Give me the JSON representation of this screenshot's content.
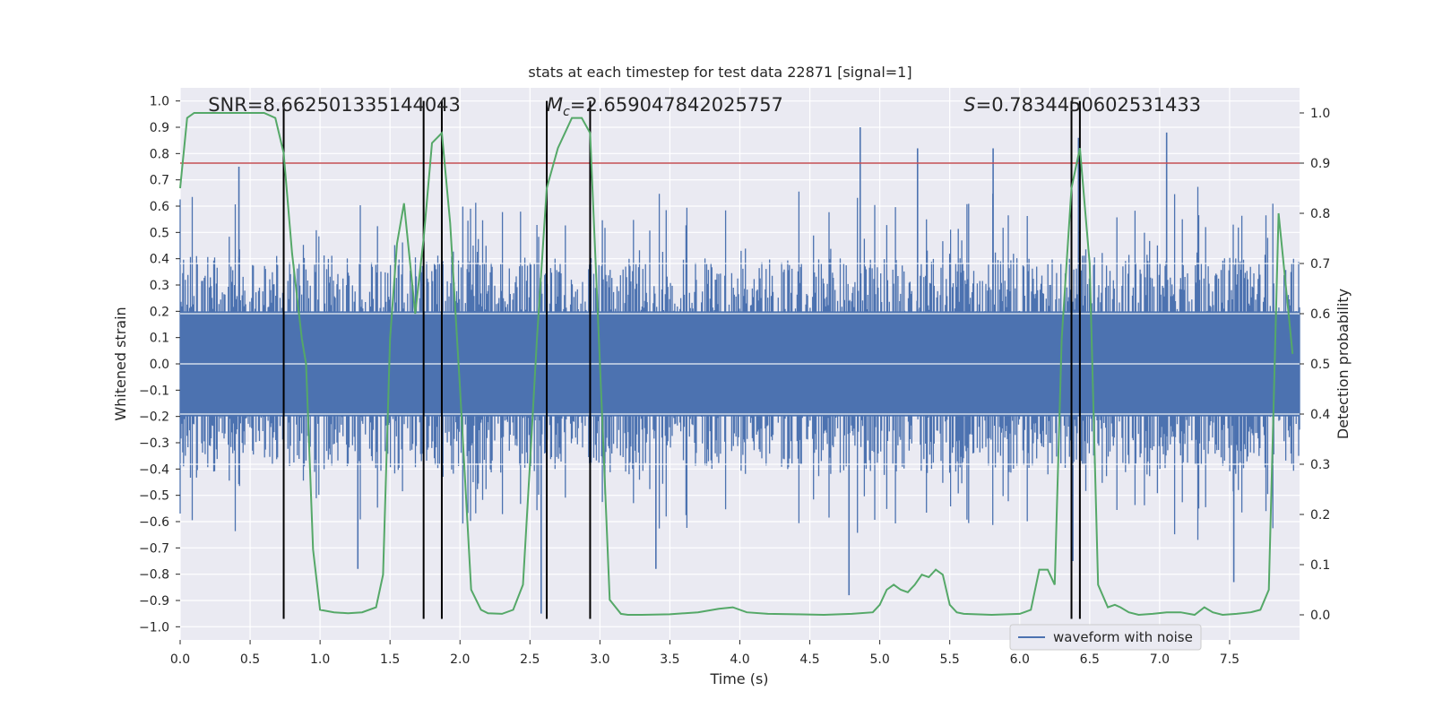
{
  "chart_data": {
    "type": "line",
    "title": "stats at each timestep for test data 22871 [signal=1]",
    "xlabel": "Time (s)",
    "ylabel": "Whitened strain",
    "y2label": "Detection probability",
    "xlim": [
      0.0,
      8.0
    ],
    "ylim": [
      -1.05,
      1.05
    ],
    "y2lim": [
      -0.05,
      1.05
    ],
    "xticks": [
      0.0,
      0.5,
      1.0,
      1.5,
      2.0,
      2.5,
      3.0,
      3.5,
      4.0,
      4.5,
      5.0,
      5.5,
      6.0,
      6.5,
      7.0,
      7.5
    ],
    "xtick_labels": [
      "0.0",
      "0.5",
      "1.0",
      "1.5",
      "2.0",
      "2.5",
      "3.0",
      "3.5",
      "4.0",
      "4.5",
      "5.0",
      "5.5",
      "6.0",
      "6.5",
      "7.0",
      "7.5"
    ],
    "yticks": [
      1.0,
      0.9,
      0.8,
      0.7,
      0.6,
      0.5,
      0.4,
      0.3,
      0.2,
      0.1,
      0.0,
      -0.1,
      -0.2,
      -0.3,
      -0.4,
      -0.5,
      -0.6,
      -0.7,
      -0.8,
      -0.9,
      -1.0
    ],
    "ytick_labels": [
      "1.0",
      "0.9",
      "0.8",
      "0.7",
      "0.6",
      "0.5",
      "0.4",
      "0.3",
      "0.2",
      "0.1",
      "0.0",
      "−0.1",
      "−0.2",
      "−0.3",
      "−0.4",
      "−0.5",
      "−0.6",
      "−0.7",
      "−0.8",
      "−0.9",
      "−1.0"
    ],
    "y2ticks": [
      1.0,
      0.9,
      0.8,
      0.7,
      0.6,
      0.5,
      0.4,
      0.3,
      0.2,
      0.1,
      0.0
    ],
    "y2tick_labels": [
      "1.0",
      "0.9",
      "0.8",
      "0.7",
      "0.6",
      "0.5",
      "0.4",
      "0.3",
      "0.2",
      "0.1",
      "0.0"
    ],
    "grid": true,
    "legend_position": "bottom-right",
    "annotations": [
      {
        "prefix": "SNR",
        "suffix": "=8.662501335144043"
      },
      {
        "prefix": "M",
        "subscript": "c",
        "suffix": "=2.659047842025757"
      },
      {
        "prefix": "S",
        "suffix": "=0.7834450602531433"
      }
    ],
    "threshold": {
      "value": 0.9,
      "axis": "y2",
      "color": "#c44e52"
    },
    "vlines": [
      0.74,
      1.74,
      1.87,
      2.62,
      2.93,
      6.37,
      6.43
    ],
    "series": [
      {
        "name": "waveform with noise",
        "axis": "y",
        "color": "#4c72b0",
        "kind": "noise",
        "typical_abs_max": 0.4,
        "spikes": [
          {
            "x": 4.86,
            "y": 0.9
          },
          {
            "x": 5.27,
            "y": 0.82
          },
          {
            "x": 5.81,
            "y": 0.82
          },
          {
            "x": 6.42,
            "y": 0.86
          },
          {
            "x": 7.05,
            "y": 0.88
          },
          {
            "x": 4.78,
            "y": -0.88
          },
          {
            "x": 2.58,
            "y": -0.95
          },
          {
            "x": 1.27,
            "y": -0.78
          },
          {
            "x": 7.53,
            "y": -0.83
          },
          {
            "x": 6.38,
            "y": -0.75
          },
          {
            "x": 3.4,
            "y": -0.78
          },
          {
            "x": 0.42,
            "y": 0.75
          }
        ]
      },
      {
        "axis": "y2",
        "color": "#55a868",
        "x": [
          0.0,
          0.05,
          0.1,
          0.2,
          0.3,
          0.4,
          0.5,
          0.6,
          0.68,
          0.74,
          0.8,
          0.87,
          0.9,
          0.95,
          1.0,
          1.1,
          1.2,
          1.3,
          1.4,
          1.45,
          1.5,
          1.55,
          1.6,
          1.68,
          1.74,
          1.8,
          1.87,
          1.93,
          2.0,
          2.08,
          2.15,
          2.2,
          2.3,
          2.38,
          2.45,
          2.5,
          2.55,
          2.62,
          2.7,
          2.75,
          2.8,
          2.87,
          2.93,
          3.0,
          3.07,
          3.15,
          3.2,
          3.3,
          3.5,
          3.7,
          3.85,
          3.95,
          4.05,
          4.2,
          4.4,
          4.6,
          4.8,
          4.95,
          5.0,
          5.05,
          5.1,
          5.15,
          5.2,
          5.25,
          5.3,
          5.35,
          5.4,
          5.45,
          5.5,
          5.55,
          5.6,
          5.8,
          6.0,
          6.08,
          6.14,
          6.2,
          6.25,
          6.3,
          6.37,
          6.43,
          6.5,
          6.56,
          6.63,
          6.68,
          6.72,
          6.78,
          6.85,
          6.95,
          7.05,
          7.15,
          7.25,
          7.32,
          7.38,
          7.45,
          7.55,
          7.65,
          7.72,
          7.78,
          7.85,
          7.95
        ],
        "y": [
          0.85,
          0.99,
          1.0,
          1.0,
          1.0,
          1.0,
          1.0,
          1.0,
          0.99,
          0.92,
          0.72,
          0.55,
          0.5,
          0.13,
          0.01,
          0.005,
          0.003,
          0.005,
          0.015,
          0.08,
          0.55,
          0.74,
          0.82,
          0.6,
          0.75,
          0.94,
          0.96,
          0.78,
          0.45,
          0.05,
          0.01,
          0.003,
          0.002,
          0.01,
          0.06,
          0.3,
          0.55,
          0.85,
          0.93,
          0.96,
          0.99,
          0.99,
          0.96,
          0.5,
          0.03,
          0.002,
          0.0,
          0.0,
          0.001,
          0.005,
          0.012,
          0.015,
          0.005,
          0.002,
          0.001,
          0.0,
          0.002,
          0.005,
          0.02,
          0.05,
          0.06,
          0.05,
          0.045,
          0.06,
          0.08,
          0.075,
          0.09,
          0.08,
          0.02,
          0.005,
          0.002,
          0.0,
          0.002,
          0.01,
          0.09,
          0.09,
          0.06,
          0.55,
          0.85,
          0.93,
          0.7,
          0.06,
          0.015,
          0.02,
          0.015,
          0.005,
          0.0,
          0.002,
          0.005,
          0.005,
          0.0,
          0.015,
          0.005,
          0.0,
          0.002,
          0.005,
          0.01,
          0.05,
          0.8,
          0.52
        ]
      }
    ]
  }
}
